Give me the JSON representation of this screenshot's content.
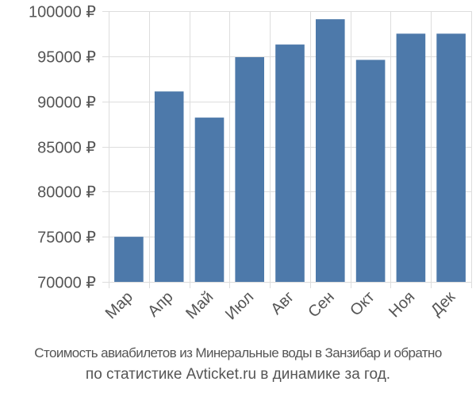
{
  "chart_data": {
    "type": "bar",
    "categories": [
      "Мар",
      "Апр",
      "Май",
      "Июл",
      "Авг",
      "Сен",
      "Окт",
      "Ноя",
      "Дек"
    ],
    "values": [
      75000,
      91100,
      88200,
      94900,
      96300,
      99100,
      94600,
      97500,
      97500
    ],
    "ylim": [
      70000,
      100000
    ],
    "y_ticks": [
      70000,
      75000,
      80000,
      85000,
      90000,
      95000,
      100000
    ],
    "y_tick_labels": [
      "70000 ₽",
      "75000 ₽",
      "80000 ₽",
      "85000 ₽",
      "90000 ₽",
      "95000 ₽",
      "100000 ₽"
    ],
    "grid": true,
    "legend": "none",
    "bar_color": "#4d79aa",
    "grid_color": "#dddddd",
    "text_color": "#555555"
  },
  "caption": {
    "line1": "Стоимость авиабилетов из Минеральные воды в Занзибар и обратно",
    "line2": "по статистике Avticket.ru в динамике за год."
  }
}
